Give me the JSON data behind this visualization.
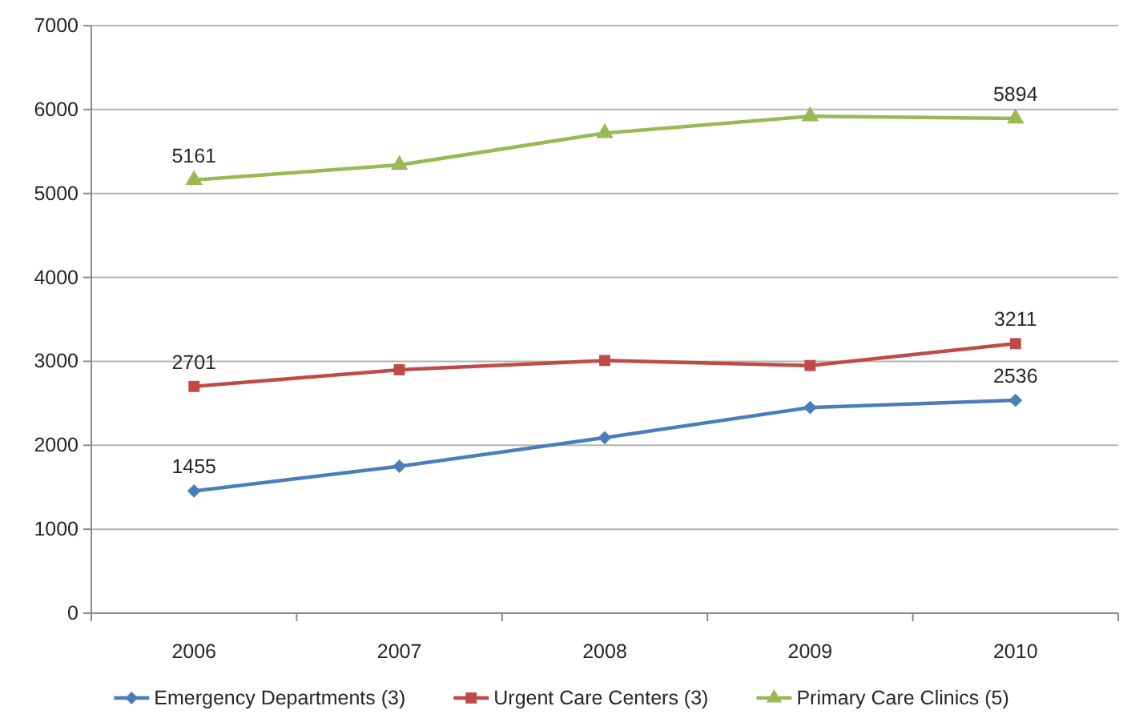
{
  "chart_data": {
    "type": "line",
    "categories": [
      "2006",
      "2007",
      "2008",
      "2009",
      "2010"
    ],
    "series": [
      {
        "name": "Emergency Departments (3)",
        "color": "#4a7ebb",
        "marker": "diamond",
        "values": [
          1455,
          1750,
          2090,
          2450,
          2536
        ],
        "value_labels": [
          "1455",
          null,
          null,
          null,
          "2536"
        ]
      },
      {
        "name": "Urgent Care Centers (3)",
        "color": "#be4b48",
        "marker": "square",
        "values": [
          2701,
          2900,
          3010,
          2950,
          3211
        ],
        "value_labels": [
          "2701",
          null,
          null,
          null,
          "3211"
        ]
      },
      {
        "name": "Primary Care Clinics (5)",
        "color": "#98b954",
        "marker": "triangle",
        "values": [
          5161,
          5340,
          5720,
          5920,
          5894
        ],
        "value_labels": [
          "5161",
          null,
          null,
          null,
          "5894"
        ]
      }
    ],
    "ylim": [
      0,
      7000
    ],
    "yticks": [
      0,
      1000,
      2000,
      3000,
      4000,
      5000,
      6000,
      7000
    ],
    "grid": "y",
    "legend": "bottom"
  }
}
